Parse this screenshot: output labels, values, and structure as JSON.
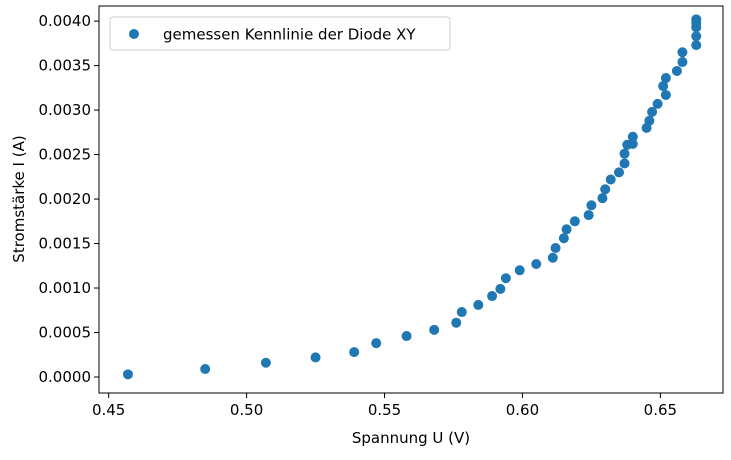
{
  "chart_data": {
    "type": "scatter",
    "xlabel": "Spannung U (V)",
    "ylabel": "Stromstärke I (A)",
    "xlim": [
      0.4465,
      0.6727
    ],
    "ylim": [
      -0.00018,
      0.00417
    ],
    "xticks": [
      0.45,
      0.5,
      0.55,
      0.6,
      0.65
    ],
    "xtick_labels": [
      "0.45",
      "0.50",
      "0.55",
      "0.60",
      "0.65"
    ],
    "yticks": [
      0.0,
      0.0005,
      0.001,
      0.0015,
      0.002,
      0.0025,
      0.003,
      0.0035,
      0.004
    ],
    "ytick_labels": [
      "0.0000",
      "0.0005",
      "0.0010",
      "0.0015",
      "0.0020",
      "0.0025",
      "0.0030",
      "0.0035",
      "0.0040"
    ],
    "legend_position": "top-left",
    "marker_color": "#1f77b4",
    "series": [
      {
        "name": "gemessen Kennlinie der Diode XY",
        "x": [
          0.457,
          0.485,
          0.507,
          0.525,
          0.539,
          0.547,
          0.558,
          0.568,
          0.576,
          0.578,
          0.584,
          0.589,
          0.592,
          0.594,
          0.599,
          0.605,
          0.611,
          0.612,
          0.615,
          0.616,
          0.619,
          0.624,
          0.625,
          0.629,
          0.63,
          0.632,
          0.635,
          0.637,
          0.637,
          0.638,
          0.64,
          0.64,
          0.645,
          0.646,
          0.647,
          0.649,
          0.651,
          0.652,
          0.652,
          0.656,
          0.658,
          0.658,
          0.663,
          0.663,
          0.663,
          0.663,
          0.663
        ],
        "y": [
          3e-05,
          9e-05,
          0.00016,
          0.00022,
          0.00028,
          0.00038,
          0.00046,
          0.00053,
          0.00061,
          0.00073,
          0.00081,
          0.00091,
          0.00099,
          0.00111,
          0.0012,
          0.00127,
          0.00134,
          0.00145,
          0.00156,
          0.00166,
          0.00175,
          0.00182,
          0.00193,
          0.00201,
          0.00211,
          0.00222,
          0.0023,
          0.0024,
          0.00251,
          0.00261,
          0.0027,
          0.00262,
          0.0028,
          0.00288,
          0.00298,
          0.00307,
          0.00327,
          0.00317,
          0.00336,
          0.00344,
          0.00354,
          0.00365,
          0.00373,
          0.00383,
          0.00393,
          0.00398,
          0.00402
        ]
      }
    ]
  }
}
